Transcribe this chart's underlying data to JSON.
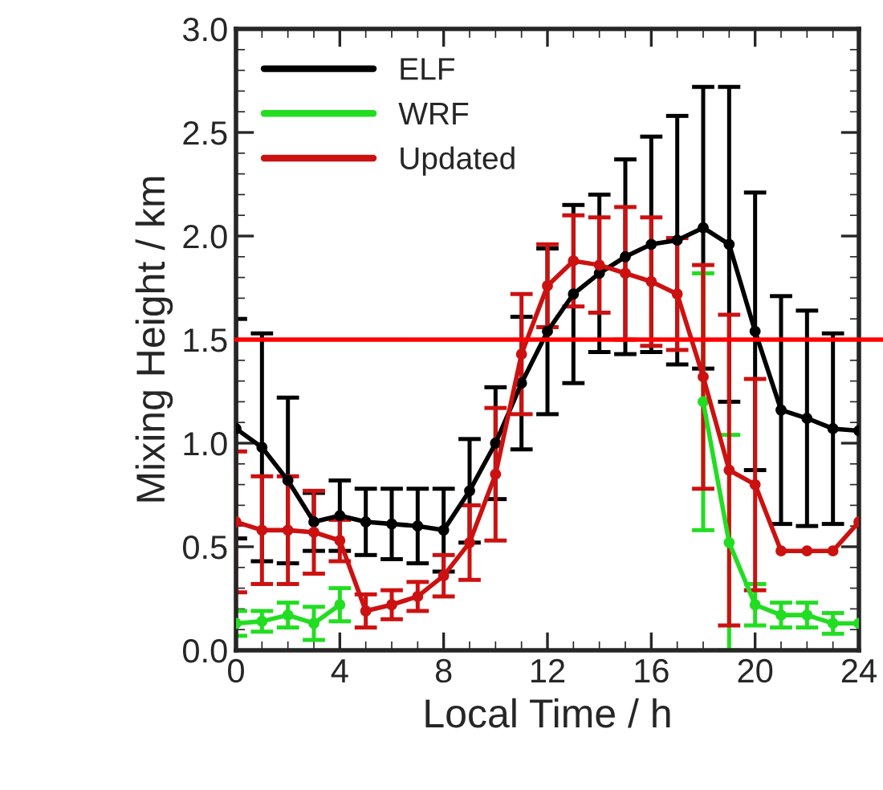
{
  "chart_data": {
    "type": "line",
    "xlabel": "Local Time / h",
    "ylabel": "Mixing Height / km",
    "x": [
      0,
      1,
      2,
      3,
      4,
      5,
      6,
      7,
      8,
      9,
      10,
      11,
      12,
      13,
      14,
      15,
      16,
      17,
      18,
      19,
      20,
      21,
      22,
      23,
      24
    ],
    "series": [
      {
        "name": "ELF",
        "color": "#000000",
        "values": [
          1.07,
          0.98,
          0.82,
          0.62,
          0.65,
          0.62,
          0.61,
          0.6,
          0.58,
          0.77,
          1.0,
          1.29,
          1.54,
          1.72,
          1.82,
          1.9,
          1.96,
          1.98,
          2.04,
          1.96,
          1.54,
          1.16,
          1.12,
          1.07,
          1.06
        ],
        "errors": [
          0.53,
          0.55,
          0.4,
          0.14,
          0.17,
          0.16,
          0.17,
          0.18,
          0.2,
          0.25,
          0.27,
          0.32,
          0.4,
          0.43,
          0.38,
          0.47,
          0.52,
          0.6,
          0.68,
          0.76,
          0.67,
          0.55,
          0.52,
          0.46,
          null
        ]
      },
      {
        "name": "WRF",
        "color": "#22dd22",
        "values": [
          0.13,
          0.14,
          0.17,
          0.13,
          0.22,
          null,
          null,
          null,
          null,
          null,
          null,
          null,
          null,
          null,
          null,
          null,
          null,
          null,
          1.2,
          0.52,
          0.22,
          0.17,
          0.17,
          0.13,
          0.13
        ],
        "errors": [
          0.06,
          0.05,
          0.06,
          0.08,
          0.08,
          null,
          null,
          null,
          null,
          null,
          null,
          null,
          null,
          null,
          null,
          null,
          null,
          null,
          0.62,
          0.52,
          0.1,
          0.06,
          0.06,
          0.05,
          null
        ]
      },
      {
        "name": "Updated",
        "color": "#cc1111",
        "values": [
          0.62,
          0.58,
          0.58,
          0.57,
          0.53,
          0.19,
          0.22,
          0.26,
          0.36,
          0.52,
          0.85,
          1.43,
          1.76,
          1.88,
          1.86,
          1.82,
          1.78,
          1.72,
          1.32,
          0.87,
          0.8,
          0.48,
          0.48,
          0.48,
          0.62
        ],
        "errors": [
          0.34,
          0.26,
          0.26,
          0.2,
          0.1,
          0.08,
          0.07,
          0.07,
          0.1,
          0.18,
          0.32,
          0.29,
          0.2,
          0.22,
          0.23,
          0.32,
          0.31,
          0.27,
          0.54,
          0.75,
          0.51,
          null,
          null,
          null,
          null
        ]
      }
    ],
    "xlim": [
      0,
      24
    ],
    "xticks": [
      0,
      4,
      8,
      12,
      16,
      20,
      24
    ],
    "ylim": [
      0,
      3
    ],
    "yticks": [
      {
        "value": 0,
        "label": "0.0"
      },
      {
        "value": 0.5,
        "label": "0.5"
      },
      {
        "value": 1,
        "label": "1.0"
      },
      {
        "value": 1.5,
        "label": "1.5"
      },
      {
        "value": 2,
        "label": "2.0"
      },
      {
        "value": 2.5,
        "label": "2.5"
      },
      {
        "value": 3,
        "label": "3.0"
      }
    ],
    "ref_lines": [
      {
        "axis": "y",
        "value": 1.5,
        "color": "#ff0000"
      }
    ],
    "legend": "top left",
    "marker": "circle",
    "line_style": "solid",
    "grid": false
  }
}
